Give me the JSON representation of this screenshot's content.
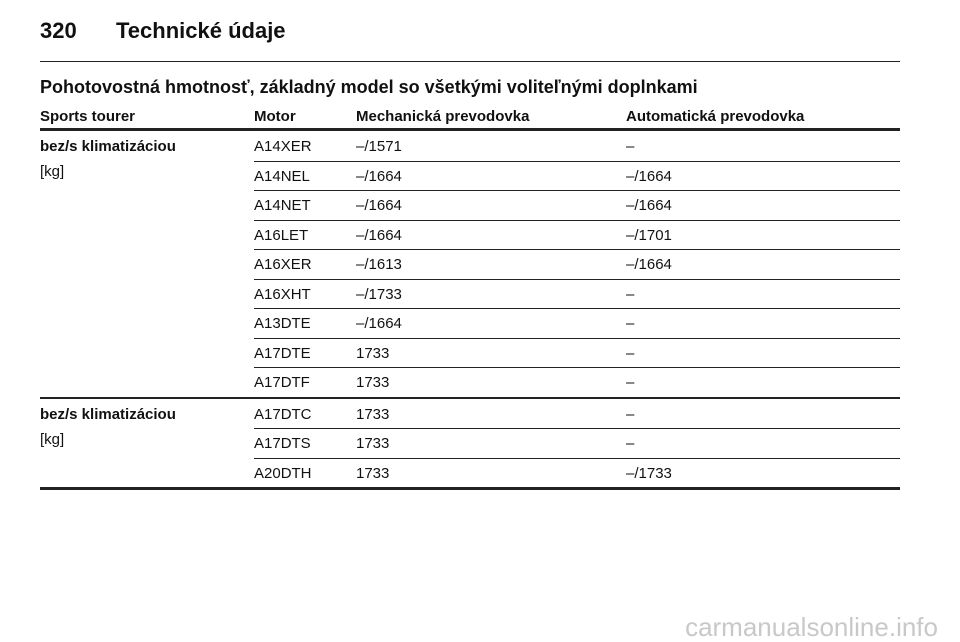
{
  "header": {
    "page_number": "320",
    "title": "Technické údaje"
  },
  "section_title": "Pohotovostná hmotnosť, základný model so všetkými voliteľnými doplnkami",
  "table": {
    "columns": [
      "Sports tourer",
      "Motor",
      "Mechanická prevodovka",
      "Automatická prevodovka"
    ],
    "groups": [
      {
        "label": "bez/s klimatizáciou",
        "unit": "[kg]",
        "rows": [
          [
            "A14XER",
            "–/1571",
            "–"
          ],
          [
            "A14NEL",
            "–/1664",
            "–/1664"
          ],
          [
            "A14NET",
            "–/1664",
            "–/1664"
          ],
          [
            "A16LET",
            "–/1664",
            "–/1701"
          ],
          [
            "A16XER",
            "–/1613",
            "–/1664"
          ],
          [
            "A16XHT",
            "–/1733",
            "–"
          ],
          [
            "A13DTE",
            "–/1664",
            "–"
          ],
          [
            "A17DTE",
            "1733",
            "–"
          ],
          [
            "A17DTF",
            "1733",
            "–"
          ]
        ]
      },
      {
        "label": "bez/s klimatizáciou",
        "unit": "[kg]",
        "rows": [
          [
            "A17DTC",
            "1733",
            "–"
          ],
          [
            "A17DTS",
            "1733",
            "–"
          ],
          [
            "A20DTH",
            "1733",
            "–/1733"
          ]
        ]
      }
    ]
  },
  "watermark": "carmanualsonline.info"
}
